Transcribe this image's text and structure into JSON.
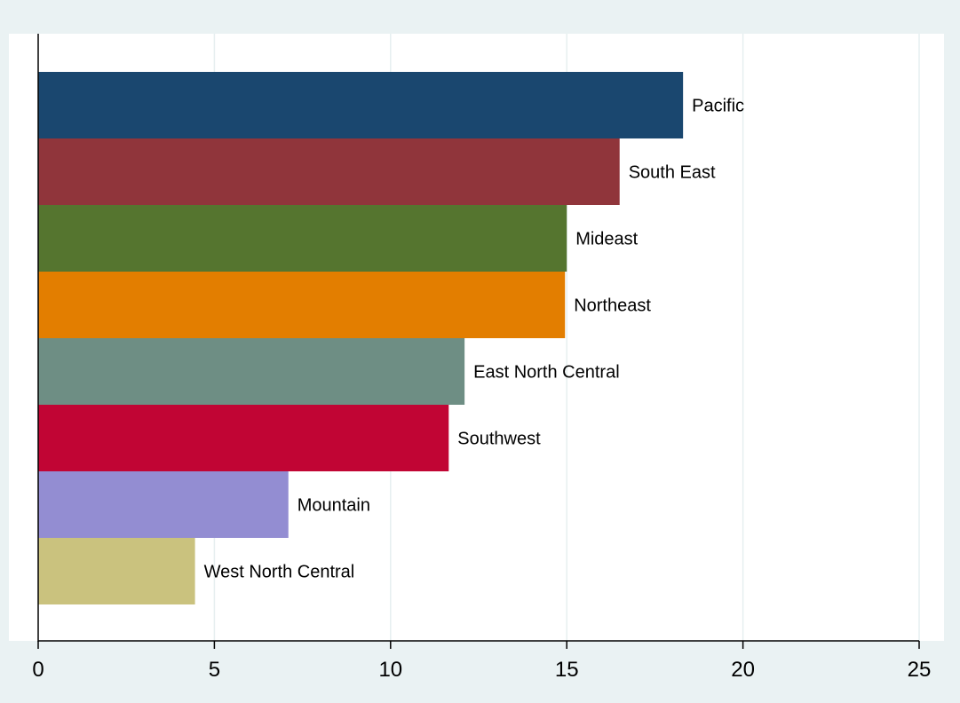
{
  "chart_data": {
    "type": "bar",
    "orientation": "horizontal",
    "categories": [
      "Pacific",
      "South East",
      "Mideast",
      "Northeast",
      "East North Central",
      "Southwest",
      "Mountain",
      "West North Central"
    ],
    "values": [
      18.3,
      16.5,
      15.0,
      14.95,
      12.1,
      11.65,
      7.1,
      4.45
    ],
    "colors": [
      "#1a476f",
      "#90353b",
      "#55752f",
      "#e37e00",
      "#6e8e84",
      "#c10534",
      "#938dd2",
      "#cac27e"
    ],
    "title": "",
    "xlabel": "",
    "ylabel": "",
    "xlim": [
      0,
      25
    ],
    "xticks": [
      0,
      5,
      10,
      15,
      20,
      25
    ],
    "grid": "vertical",
    "legend": "none",
    "bar_labels": "outside-end"
  }
}
